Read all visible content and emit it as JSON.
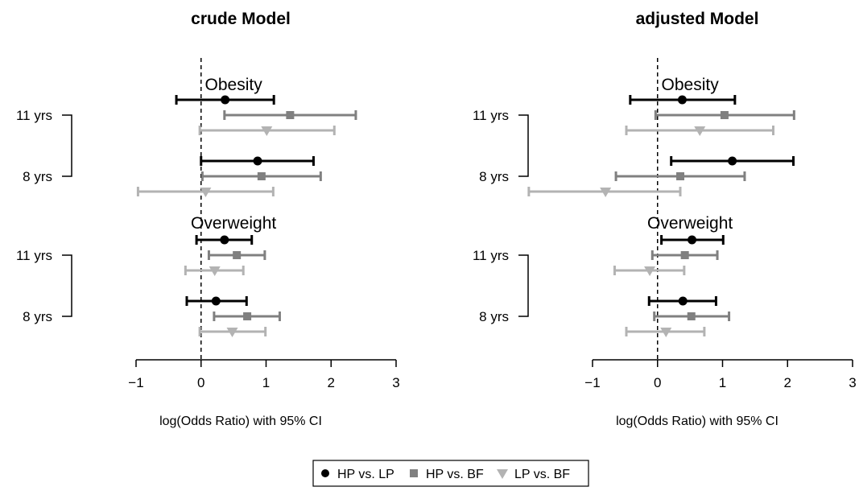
{
  "chart_data": [
    {
      "type": "forest",
      "title": "crude Model",
      "xlabel": "log(Odds Ratio) with 95% CI",
      "x_ticks": [
        "−1",
        "0",
        "1",
        "2",
        "3"
      ],
      "xlim": [
        -1,
        3
      ],
      "reference_line": 0,
      "groups": [
        {
          "name": "Obesity",
          "rows": [
            {
              "label": "11 yrs",
              "estimates": [
                {
                  "series": "HP vs. LP",
                  "est": 0.37,
                  "lo": -0.38,
                  "hi": 1.12
                },
                {
                  "series": "HP vs. BF",
                  "est": 1.37,
                  "lo": 0.36,
                  "hi": 2.38
                },
                {
                  "series": "LP vs. BF",
                  "est": 1.01,
                  "lo": -0.02,
                  "hi": 2.05
                }
              ]
            },
            {
              "label": "8 yrs",
              "estimates": [
                {
                  "series": "HP vs. LP",
                  "est": 0.87,
                  "lo": 0.0,
                  "hi": 1.73
                },
                {
                  "series": "HP vs. BF",
                  "est": 0.93,
                  "lo": 0.02,
                  "hi": 1.84
                },
                {
                  "series": "LP vs. BF",
                  "est": 0.07,
                  "lo": -0.97,
                  "hi": 1.11
                }
              ]
            }
          ]
        },
        {
          "name": "Overweight",
          "rows": [
            {
              "label": "11 yrs",
              "estimates": [
                {
                  "series": "HP vs. LP",
                  "est": 0.36,
                  "lo": -0.07,
                  "hi": 0.78
                },
                {
                  "series": "HP vs. BF",
                  "est": 0.55,
                  "lo": 0.12,
                  "hi": 0.98
                },
                {
                  "series": "LP vs. BF",
                  "est": 0.21,
                  "lo": -0.24,
                  "hi": 0.65
                }
              ]
            },
            {
              "label": "8 yrs",
              "estimates": [
                {
                  "series": "HP vs. LP",
                  "est": 0.23,
                  "lo": -0.22,
                  "hi": 0.7
                },
                {
                  "series": "HP vs. BF",
                  "est": 0.71,
                  "lo": 0.2,
                  "hi": 1.21
                },
                {
                  "series": "LP vs. BF",
                  "est": 0.48,
                  "lo": -0.02,
                  "hi": 0.99
                }
              ]
            }
          ]
        }
      ]
    },
    {
      "type": "forest",
      "title": "adjusted Model",
      "xlabel": "log(Odds Ratio) with 95% CI",
      "x_ticks": [
        "−1",
        "0",
        "1",
        "2",
        "3"
      ],
      "xlim": [
        -1,
        3
      ],
      "reference_line": 0,
      "groups": [
        {
          "name": "Obesity",
          "rows": [
            {
              "label": "11 yrs",
              "estimates": [
                {
                  "series": "HP vs. LP",
                  "est": 0.38,
                  "lo": -0.42,
                  "hi": 1.19
                },
                {
                  "series": "HP vs. BF",
                  "est": 1.03,
                  "lo": -0.03,
                  "hi": 2.1
                },
                {
                  "series": "LP vs. BF",
                  "est": 0.65,
                  "lo": -0.48,
                  "hi": 1.78
                }
              ]
            },
            {
              "label": "8 yrs",
              "estimates": [
                {
                  "series": "HP vs. LP",
                  "est": 1.15,
                  "lo": 0.21,
                  "hi": 2.09
                },
                {
                  "series": "HP vs. BF",
                  "est": 0.35,
                  "lo": -0.64,
                  "hi": 1.34
                },
                {
                  "series": "LP vs. BF",
                  "est": -0.8,
                  "lo": -1.98,
                  "hi": 0.35
                }
              ]
            }
          ]
        },
        {
          "name": "Overweight",
          "rows": [
            {
              "label": "11 yrs",
              "estimates": [
                {
                  "series": "HP vs. LP",
                  "est": 0.53,
                  "lo": 0.06,
                  "hi": 1.01
                },
                {
                  "series": "HP vs. BF",
                  "est": 0.42,
                  "lo": -0.08,
                  "hi": 0.92
                },
                {
                  "series": "LP vs. BF",
                  "est": -0.12,
                  "lo": -0.66,
                  "hi": 0.41
                }
              ]
            },
            {
              "label": "8 yrs",
              "estimates": [
                {
                  "series": "HP vs. LP",
                  "est": 0.39,
                  "lo": -0.13,
                  "hi": 0.9
                },
                {
                  "series": "HP vs. BF",
                  "est": 0.52,
                  "lo": -0.05,
                  "hi": 1.1
                },
                {
                  "series": "LP vs. BF",
                  "est": 0.13,
                  "lo": -0.48,
                  "hi": 0.72
                }
              ]
            }
          ]
        }
      ]
    }
  ],
  "series": [
    {
      "name": "HP vs. LP",
      "color": "#000000",
      "marker": "circle"
    },
    {
      "name": "HP vs. BF",
      "color": "#808080",
      "marker": "square"
    },
    {
      "name": "LP vs. BF",
      "color": "#b3b3b3",
      "marker": "triangle-down"
    }
  ]
}
